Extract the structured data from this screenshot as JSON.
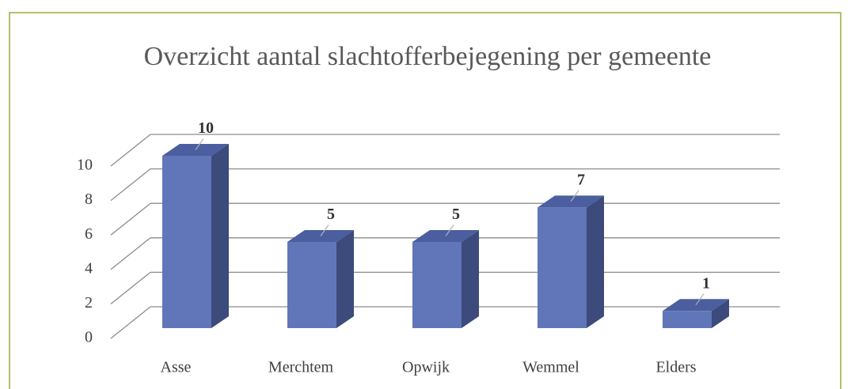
{
  "chart_data": {
    "type": "bar3d",
    "title": "Overzicht aantal slachtofferbejegening per gemeente",
    "categories": [
      "Asse",
      "Merchtem",
      "Opwijk",
      "Wemmel",
      "Elders"
    ],
    "values": [
      10,
      5,
      5,
      7,
      1
    ],
    "color": "#6175b9",
    "ylim": [
      0,
      10
    ],
    "yticks": [
      0,
      2,
      4,
      6,
      8,
      10
    ],
    "grid": true
  }
}
